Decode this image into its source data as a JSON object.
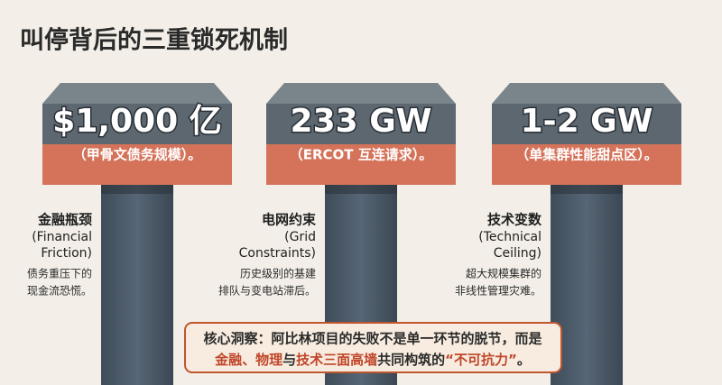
{
  "header": {
    "title": "叫停背后的三重锁死机制"
  },
  "pillars": [
    {
      "value": "$1,000 亿",
      "note": "（甲骨文债务规模）。",
      "name": "金融瓶颈",
      "english": [
        "(Financial",
        "Friction)"
      ],
      "desc": [
        "债务重压下的",
        "现金流恐慌。"
      ]
    },
    {
      "value": "233 GW",
      "note": "（ERCOT 互连请求）。",
      "name": "电网约束",
      "english": [
        "(Grid",
        "Constraints)"
      ],
      "desc": [
        "历史级别的基建",
        "排队与变电站滞后。"
      ]
    },
    {
      "value": "1-2 GW",
      "note": "（单集群性能甜点区）。",
      "name": "技术变数",
      "english": [
        "(Technical",
        "Ceiling)"
      ],
      "desc": [
        "超大规模集群的",
        "非线性管理灾难。"
      ]
    }
  ],
  "insight": {
    "line1": "核心洞察：阿比林项目的失败不是单一环节的脱节，而是",
    "line2": [
      "金融、物理",
      "与",
      "技术三面高墙",
      "共同构筑的",
      "“不可抗力”",
      "。"
    ]
  }
}
